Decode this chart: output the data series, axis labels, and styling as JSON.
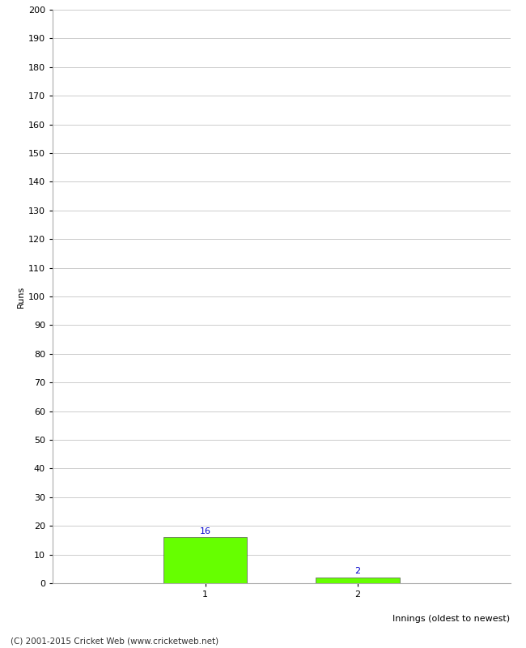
{
  "categories": [
    1,
    2
  ],
  "values": [
    16,
    2
  ],
  "bar_color": "#66ff00",
  "bar_edge_color": "#555555",
  "ylabel": "Runs",
  "xlabel": "Innings (oldest to newest)",
  "ylim": [
    0,
    200
  ],
  "yticks": [
    0,
    10,
    20,
    30,
    40,
    50,
    60,
    70,
    80,
    90,
    100,
    110,
    120,
    130,
    140,
    150,
    160,
    170,
    180,
    190,
    200
  ],
  "value_label_color": "#0000cc",
  "value_label_fontsize": 8,
  "axis_label_fontsize": 8,
  "tick_fontsize": 8,
  "footer_text": "(C) 2001-2015 Cricket Web (www.cricketweb.net)",
  "footer_fontsize": 7.5,
  "background_color": "#ffffff",
  "grid_color": "#cccccc",
  "bar_width": 0.55,
  "xlim": [
    0,
    3
  ]
}
